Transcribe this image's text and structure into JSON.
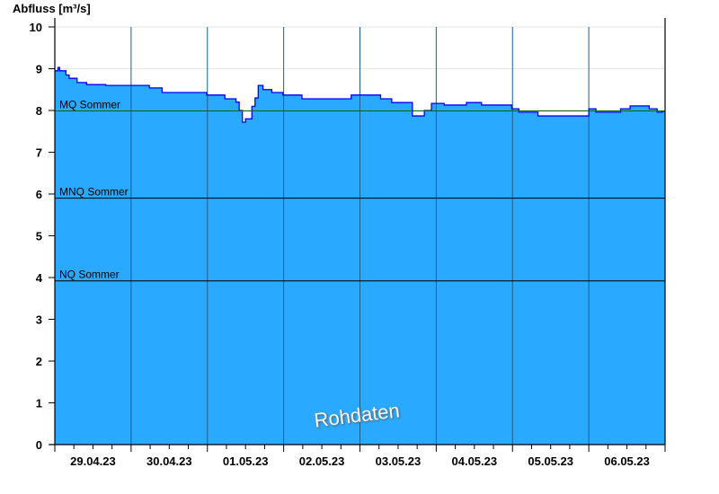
{
  "chart_data": {
    "type": "area",
    "ylabel": "Abfluss [m³/s]",
    "ylim": [
      0,
      10
    ],
    "yticks": [
      0,
      1,
      2,
      3,
      4,
      5,
      6,
      7,
      8,
      9,
      10
    ],
    "xlim": [
      "29.04.23 00:00",
      "07.05.23 00:00"
    ],
    "xtick_labels": [
      "29.04.23",
      "30.04.23",
      "01.05.23",
      "02.05.23",
      "03.05.23",
      "04.05.23",
      "05.05.23",
      "06.05.23"
    ],
    "grid": true,
    "watermark": "Rohdaten",
    "reference_lines": [
      {
        "name": "MQ Sommer",
        "value": 7.99,
        "color": "#006400"
      },
      {
        "name": "MNQ Sommer",
        "value": 5.9,
        "color": "#000000"
      },
      {
        "name": "NQ Sommer",
        "value": 3.92,
        "color": "#000000"
      }
    ],
    "colors": {
      "fill": "#29a9ff",
      "line": "#0000ff",
      "day_lines": "#1a5f8f"
    },
    "series": [
      {
        "points": [
          [
            "29.04.23 00:00",
            8.95
          ],
          [
            "29.04.23 01:00",
            9.03
          ],
          [
            "29.04.23 01:30",
            8.95
          ],
          [
            "29.04.23 03:30",
            8.85
          ],
          [
            "29.04.23 04:30",
            8.77
          ],
          [
            "29.04.23 07:00",
            8.67
          ],
          [
            "29.04.23 10:00",
            8.62
          ],
          [
            "29.04.23 16:00",
            8.6
          ],
          [
            "30.04.23 05:45",
            8.54
          ],
          [
            "30.04.23 09:45",
            8.43
          ],
          [
            "30.04.23 23:45",
            8.37
          ],
          [
            "01.05.23 05:30",
            8.28
          ],
          [
            "01.05.23 09:00",
            8.2
          ],
          [
            "01.05.23 10:00",
            8.0
          ],
          [
            "01.05.23 11:00",
            7.72
          ],
          [
            "01.05.23 12:00",
            7.8
          ],
          [
            "01.05.23 14:00",
            8.1
          ],
          [
            "01.05.23 15:00",
            8.3
          ],
          [
            "01.05.23 16:00",
            8.6
          ],
          [
            "01.05.23 17:30",
            8.5
          ],
          [
            "01.05.23 20:15",
            8.43
          ],
          [
            "01.05.23 23:45",
            8.37
          ],
          [
            "02.05.23 05:45",
            8.28
          ],
          [
            "02.05.23 21:15",
            8.37
          ],
          [
            "03.05.23 06:30",
            8.28
          ],
          [
            "03.05.23 10:00",
            8.19
          ],
          [
            "03.05.23 15:45",
            8.19
          ],
          [
            "03.05.23 16:30",
            7.87
          ],
          [
            "03.05.23 18:15",
            7.87
          ],
          [
            "03.05.23 20:15",
            8.0
          ],
          [
            "03.05.23 22:30",
            8.17
          ],
          [
            "04.05.23 02:30",
            8.13
          ],
          [
            "04.05.23 09:30",
            8.19
          ],
          [
            "04.05.23 14:15",
            8.13
          ],
          [
            "04.05.23 23:45",
            8.04
          ],
          [
            "05.05.23 02:00",
            7.96
          ],
          [
            "05.05.23 08:00",
            7.87
          ],
          [
            "05.05.23 23:00",
            7.87
          ],
          [
            "06.05.23 00:00",
            8.04
          ],
          [
            "06.05.23 02:15",
            7.96
          ],
          [
            "06.05.23 07:00",
            7.96
          ],
          [
            "06.05.23 10:00",
            8.04
          ],
          [
            "06.05.23 13:00",
            8.11
          ],
          [
            "06.05.23 19:00",
            8.04
          ],
          [
            "06.05.23 21:30",
            7.96
          ],
          [
            "06.05.23 23:00",
            7.98
          ]
        ]
      }
    ]
  }
}
